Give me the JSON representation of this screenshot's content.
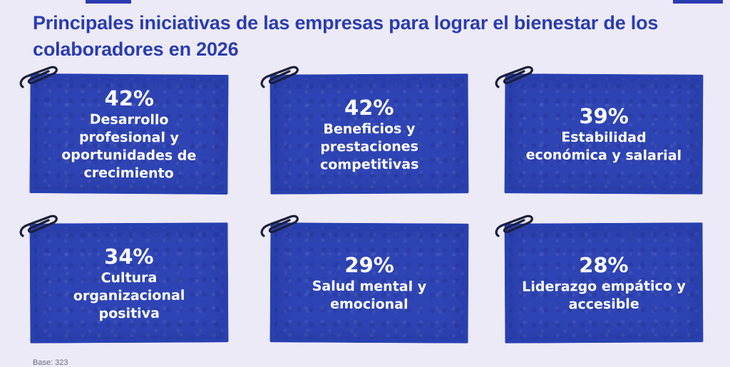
{
  "title": "Principales iniciativas de las empresas para lograr el bienestar de los colaboradores en 2026",
  "footnote": "Base: 323",
  "chart_data": {
    "type": "table",
    "title": "Principales iniciativas de las empresas para lograr el bienestar de los colaboradores en 2026",
    "categories": [
      "Desarrollo profesional y oportunidades de crecimiento",
      "Beneficios y prestaciones competitivas",
      "Estabilidad económica y salarial",
      "Cultura organizacional positiva",
      "Salud mental y emocional",
      "Liderazgo empático y accesible"
    ],
    "values": [
      42,
      42,
      39,
      34,
      29,
      28
    ],
    "unit": "%",
    "items": [
      {
        "pct": "42%",
        "label": "Desarrollo profesional y oportunidades de crecimiento"
      },
      {
        "pct": "42%",
        "label": "Beneficios y prestaciones competitivas"
      },
      {
        "pct": "39%",
        "label": "Estabilidad económica y salarial"
      },
      {
        "pct": "34%",
        "label": "Cultura organizacional positiva"
      },
      {
        "pct": "29%",
        "label": "Salud mental y emocional"
      },
      {
        "pct": "28%",
        "label": "Liderazgo empático y accesible"
      }
    ]
  },
  "colors": {
    "background": "#eceaf6",
    "title": "#2a3cb1",
    "card": "#2f44b4",
    "card_text": "#ffffff",
    "clip": "#1b1f3a"
  },
  "icons": {
    "clip": "paperclip-icon"
  }
}
